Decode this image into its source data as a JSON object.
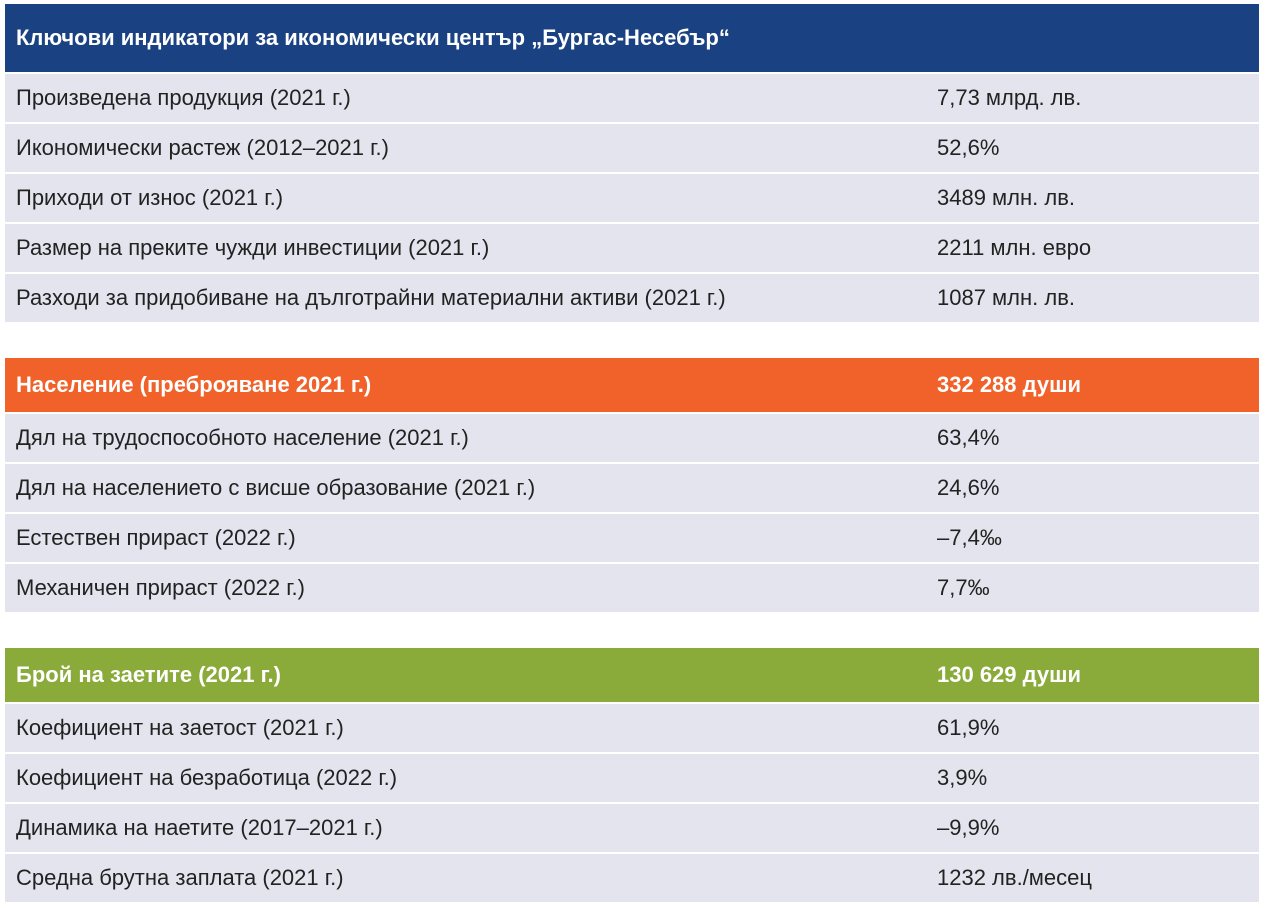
{
  "colors": {
    "economy_header": "#1a4282",
    "population_header": "#f0622a",
    "employment_header": "#8aaa3a",
    "row_bg": "#e4e4ee"
  },
  "economy": {
    "title": "Ключови индикатори за икономически център „Бургас-Несебър“",
    "rows": [
      {
        "label": "Произведена продукция (2021 г.)",
        "value": "7,73 млрд. лв."
      },
      {
        "label": "Икономически растеж (2012–2021 г.)",
        "value": "52,6%"
      },
      {
        "label": "Приходи от износ (2021 г.)",
        "value": "3489 млн. лв."
      },
      {
        "label": "Размер на преките чужди инвестиции (2021 г.)",
        "value": "2211 млн. евро"
      },
      {
        "label": "Разходи за придобиване на дълготрайни материални активи (2021 г.)",
        "value": "1087 млн. лв."
      }
    ]
  },
  "population": {
    "title": "Население (преброяване 2021 г.)",
    "total": "332 288 души",
    "rows": [
      {
        "label": "Дял на трудоспособното население (2021 г.)",
        "value": "63,4%"
      },
      {
        "label": "Дял на населението с висше образование (2021 г.)",
        "value": "24,6%"
      },
      {
        "label": "Естествен прираст (2022 г.)",
        "value": "–7,4‰"
      },
      {
        "label": "Механичен прираст (2022 г.)",
        "value": "7,7‰"
      }
    ]
  },
  "employment": {
    "title": "Брой на заетите (2021 г.)",
    "total": "130 629 души",
    "rows": [
      {
        "label": "Коефициент на заетост (2021 г.)",
        "value": "61,9%"
      },
      {
        "label": "Коефициент на безработица (2022 г.)",
        "value": "3,9%"
      },
      {
        "label": "Динамика на наетите (2017–2021 г.)",
        "value": "–9,9%"
      },
      {
        "label": "Средна брутна заплата (2021 г.)",
        "value": "1232 лв./месец"
      }
    ]
  }
}
